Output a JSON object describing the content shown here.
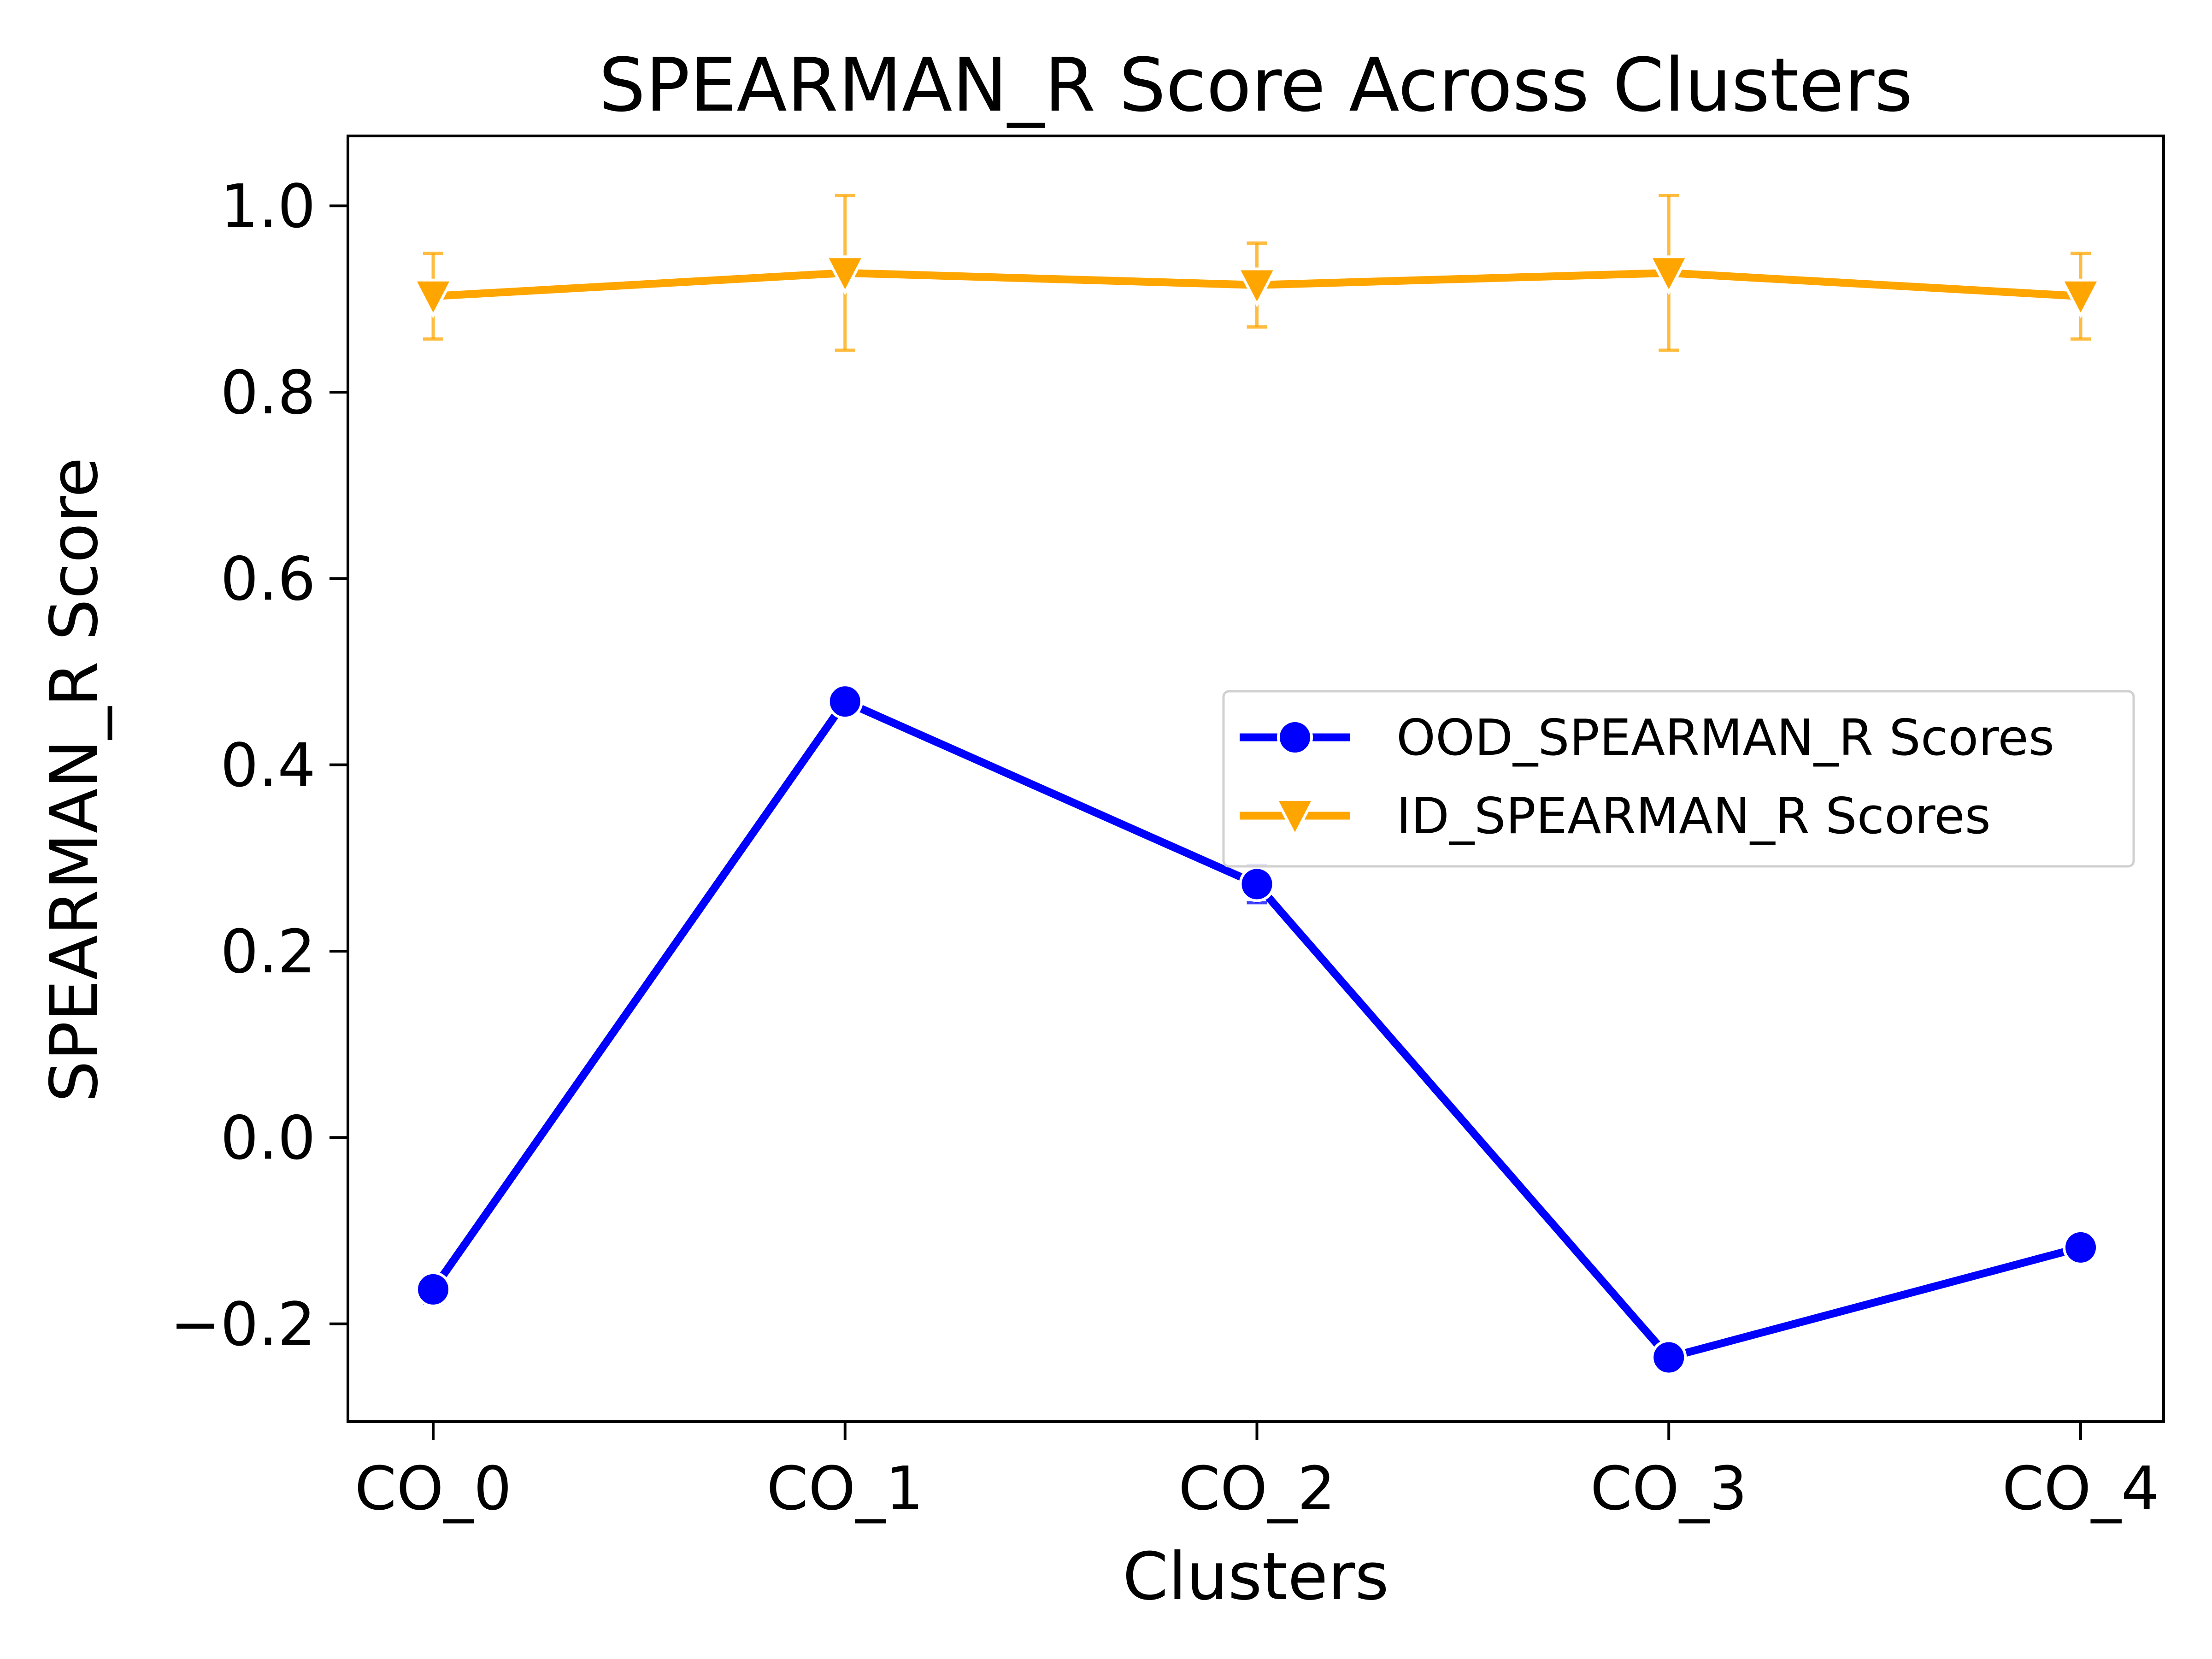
{
  "chart_data": {
    "type": "line",
    "title": "SPEARMAN_R Score Across Clusters",
    "xlabel": "Clusters",
    "ylabel": "SPEARMAN_R Score",
    "categories": [
      "CO_0",
      "CO_1",
      "CO_2",
      "CO_3",
      "CO_4"
    ],
    "ylim": [
      -0.305,
      1.075
    ],
    "yticks": [
      -0.2,
      0.0,
      0.2,
      0.4,
      0.6,
      0.8,
      1.0
    ],
    "ytick_labels": [
      "−0.2",
      "0.0",
      "0.2",
      "0.4",
      "0.6",
      "0.8",
      "1.0"
    ],
    "grid": false,
    "legend_position": "center-right",
    "series": [
      {
        "name": "OOD_SPEARMAN_R Scores",
        "color": "#0000ff",
        "marker": "circle",
        "values": [
          -0.163,
          0.468,
          0.272,
          -0.236,
          -0.118
        ],
        "errors": [
          0.015,
          0.0,
          0.02,
          0.0,
          0.0
        ]
      },
      {
        "name": "ID_SPEARMAN_R Scores",
        "color": "#ffa500",
        "marker": "triangle-down",
        "values": [
          0.903,
          0.928,
          0.915,
          0.928,
          0.903
        ],
        "errors": [
          0.046,
          0.083,
          0.045,
          0.083,
          0.046
        ]
      }
    ]
  }
}
